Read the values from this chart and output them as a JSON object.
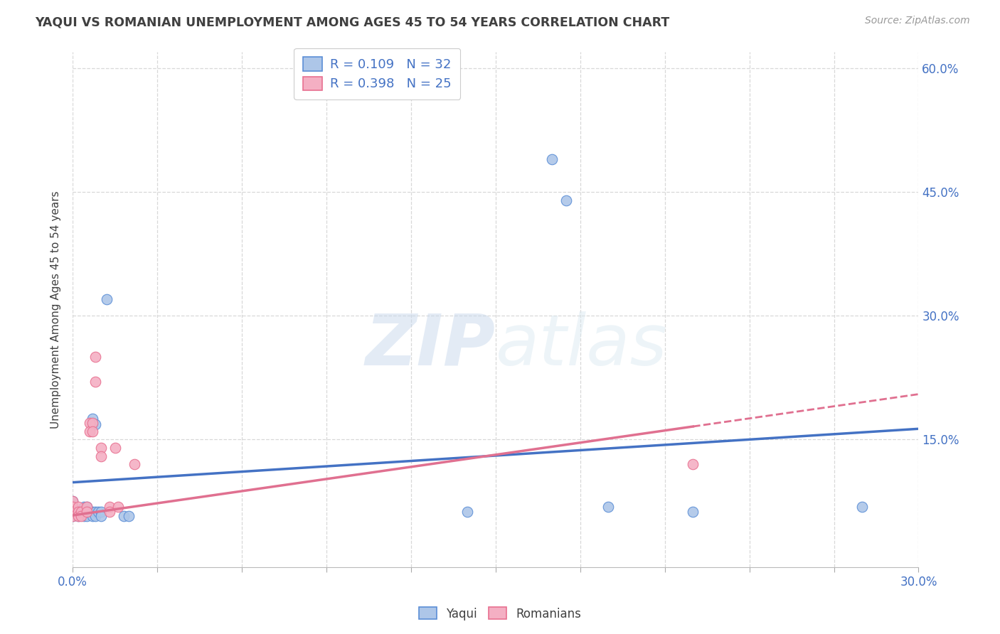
{
  "title": "YAQUI VS ROMANIAN UNEMPLOYMENT AMONG AGES 45 TO 54 YEARS CORRELATION CHART",
  "source": "Source: ZipAtlas.com",
  "xlim": [
    0.0,
    0.3
  ],
  "ylim": [
    -0.005,
    0.62
  ],
  "yaqui_R": 0.109,
  "yaqui_N": 32,
  "romanian_R": 0.398,
  "romanian_N": 25,
  "yaqui_color": "#adc6e8",
  "romanian_color": "#f4afc3",
  "yaqui_edge_color": "#5b8ed6",
  "romanian_edge_color": "#e87090",
  "yaqui_line_color": "#4472c4",
  "romanian_line_color": "#e07090",
  "watermark_color": "#dce6f0",
  "background_color": "#ffffff",
  "grid_color": "#d8d8d8",
  "title_color": "#404040",
  "label_color": "#4472c4",
  "yaqui_points": [
    [
      0.0,
      0.075
    ],
    [
      0.0,
      0.068
    ],
    [
      0.0,
      0.062
    ],
    [
      0.0,
      0.057
    ],
    [
      0.002,
      0.062
    ],
    [
      0.002,
      0.057
    ],
    [
      0.003,
      0.062
    ],
    [
      0.004,
      0.062
    ],
    [
      0.004,
      0.068
    ],
    [
      0.004,
      0.057
    ],
    [
      0.005,
      0.068
    ],
    [
      0.005,
      0.057
    ],
    [
      0.006,
      0.062
    ],
    [
      0.007,
      0.175
    ],
    [
      0.007,
      0.168
    ],
    [
      0.007,
      0.062
    ],
    [
      0.007,
      0.057
    ],
    [
      0.008,
      0.168
    ],
    [
      0.008,
      0.062
    ],
    [
      0.008,
      0.057
    ],
    [
      0.009,
      0.062
    ],
    [
      0.01,
      0.062
    ],
    [
      0.01,
      0.057
    ],
    [
      0.012,
      0.32
    ],
    [
      0.018,
      0.057
    ],
    [
      0.02,
      0.057
    ],
    [
      0.14,
      0.062
    ],
    [
      0.17,
      0.49
    ],
    [
      0.175,
      0.44
    ],
    [
      0.19,
      0.068
    ],
    [
      0.22,
      0.062
    ],
    [
      0.28,
      0.068
    ]
  ],
  "romanian_points": [
    [
      0.0,
      0.075
    ],
    [
      0.0,
      0.068
    ],
    [
      0.0,
      0.062
    ],
    [
      0.0,
      0.057
    ],
    [
      0.002,
      0.068
    ],
    [
      0.002,
      0.062
    ],
    [
      0.002,
      0.057
    ],
    [
      0.003,
      0.062
    ],
    [
      0.003,
      0.057
    ],
    [
      0.005,
      0.068
    ],
    [
      0.005,
      0.062
    ],
    [
      0.006,
      0.17
    ],
    [
      0.006,
      0.16
    ],
    [
      0.007,
      0.17
    ],
    [
      0.007,
      0.16
    ],
    [
      0.008,
      0.25
    ],
    [
      0.008,
      0.22
    ],
    [
      0.01,
      0.14
    ],
    [
      0.01,
      0.13
    ],
    [
      0.013,
      0.068
    ],
    [
      0.013,
      0.062
    ],
    [
      0.015,
      0.14
    ],
    [
      0.016,
      0.068
    ],
    [
      0.022,
      0.12
    ],
    [
      0.22,
      0.12
    ]
  ],
  "yaqui_trendline": [
    [
      0.0,
      0.098
    ],
    [
      0.3,
      0.163
    ]
  ],
  "romanian_trendline": [
    [
      0.0,
      0.058
    ],
    [
      0.3,
      0.205
    ]
  ],
  "ytick_vals": [
    0.15,
    0.3,
    0.45,
    0.6
  ],
  "xtick_count": 11
}
